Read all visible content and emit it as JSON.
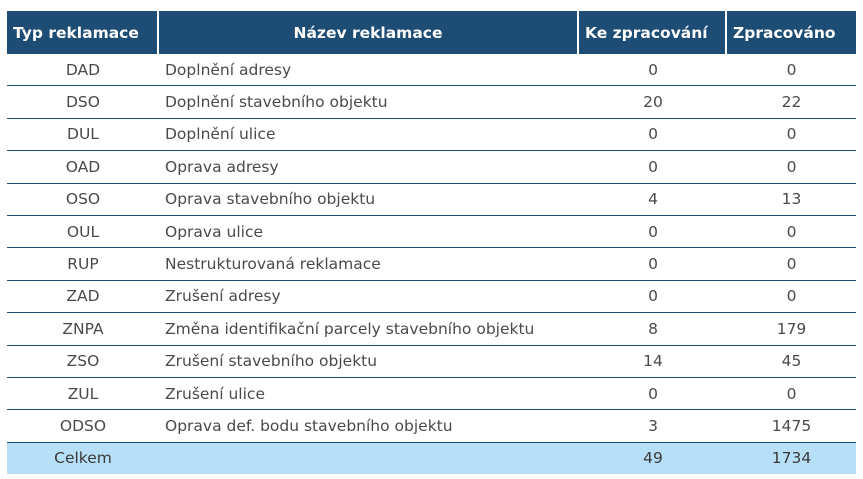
{
  "table": {
    "headers": {
      "type": "Typ reklamace",
      "name": "Název reklamace",
      "pending": "Ke zpracování",
      "done": "Zpracováno"
    },
    "rows": [
      {
        "code": "DAD",
        "name": "Doplnění adresy",
        "pending": "0",
        "done": "0"
      },
      {
        "code": "DSO",
        "name": "Doplnění stavebního objektu",
        "pending": "20",
        "done": "22"
      },
      {
        "code": "DUL",
        "name": "Doplnění ulice",
        "pending": "0",
        "done": "0"
      },
      {
        "code": "OAD",
        "name": "Oprava adresy",
        "pending": "0",
        "done": "0"
      },
      {
        "code": "OSO",
        "name": "Oprava stavebního objektu",
        "pending": "4",
        "done": "13"
      },
      {
        "code": "OUL",
        "name": "Oprava ulice",
        "pending": "0",
        "done": "0"
      },
      {
        "code": "RUP",
        "name": "Nestrukturovaná reklamace",
        "pending": "0",
        "done": "0"
      },
      {
        "code": "ZAD",
        "name": "Zrušení adresy",
        "pending": "0",
        "done": "0"
      },
      {
        "code": "ZNPA",
        "name": "Změna identifikační parcely stavebního objektu",
        "pending": "8",
        "done": "179"
      },
      {
        "code": "ZSO",
        "name": "Zrušení stavebního objektu",
        "pending": "14",
        "done": "45"
      },
      {
        "code": "ZUL",
        "name": "Zrušení ulice",
        "pending": "0",
        "done": "0"
      },
      {
        "code": "ODSO",
        "name": "Oprava def. bodu stavebního objektu",
        "pending": "3",
        "done": "1475"
      }
    ],
    "total": {
      "label": "Celkem",
      "pending": "49",
      "done": "1734"
    }
  },
  "colors": {
    "header_bg": "#1d4c75",
    "total_bg": "#b7dff7",
    "row_border": "#1d4c75"
  }
}
